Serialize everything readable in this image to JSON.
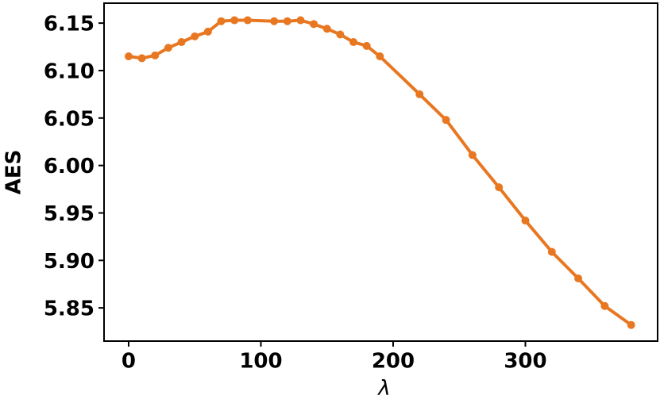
{
  "chart_data": {
    "type": "line",
    "xlabel": "λ",
    "ylabel": "AES",
    "x": [
      0,
      10,
      20,
      30,
      40,
      50,
      60,
      70,
      80,
      90,
      110,
      120,
      130,
      140,
      150,
      160,
      170,
      180,
      190,
      220,
      240,
      260,
      280,
      300,
      320,
      340,
      360,
      380
    ],
    "series": [
      {
        "color": "#e87722",
        "values": [
          6.115,
          6.113,
          6.116,
          6.124,
          6.13,
          6.136,
          6.141,
          6.152,
          6.153,
          6.153,
          6.152,
          6.152,
          6.153,
          6.149,
          6.144,
          6.138,
          6.13,
          6.126,
          6.115,
          6.075,
          6.048,
          6.011,
          5.977,
          5.942,
          5.909,
          5.881,
          5.852,
          5.832
        ]
      }
    ],
    "xlim": [
      -18.6,
      400
    ],
    "ylim": [
      5.815,
      6.171
    ],
    "xticks": [
      0,
      100,
      200,
      300
    ],
    "yticks": [
      5.85,
      {
        "value": 5.9,
        "label": "5.90"
      },
      5.95,
      {
        "value": 6.0,
        "label": "6.00"
      },
      6.05,
      {
        "value": 6.1,
        "label": "6.10"
      },
      6.15
    ]
  }
}
